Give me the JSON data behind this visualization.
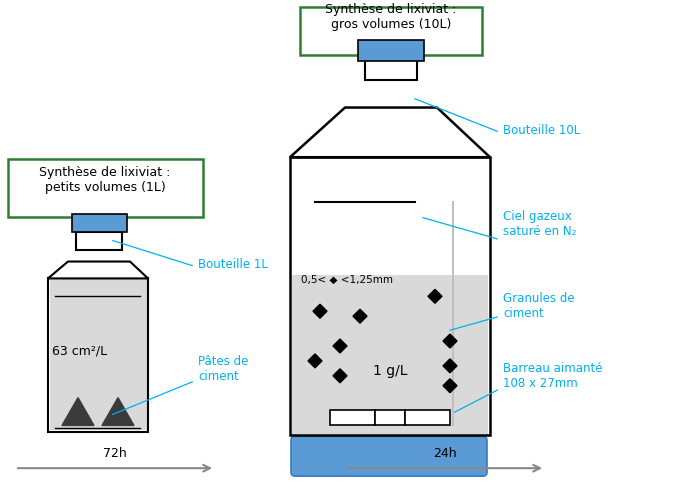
{
  "bg_color": "#ffffff",
  "border_color": "#2e7d32",
  "blue_cap": "#5b9bd5",
  "gray_fill": "#d9d9d9",
  "black": "#000000",
  "dark_gray": "#3a3a3a",
  "cyan_label": "#00b0f0",
  "arrow_color": "#888888",
  "box1_text": "Synthèse de lixiviat :\npetits volumes (1L)",
  "box2_text": "Synthèse de lixiviat :\ngros volumes (10L)",
  "label_bouteille1L": "Bouteille 1L",
  "label_bouteille10L": "Bouteille 10L",
  "label_ciel": "Ciel gazeux\nsaturé en N₂",
  "label_granules": "Granules de\nciment",
  "label_barreau": "Barreau aimanté\n108 x 27mm",
  "label_pates": "Pâtes de\nciment",
  "label_63": "63 cm²/L",
  "label_1gL": "1 g/L",
  "label_size": "0,5< ◆ <1,25mm",
  "label_72h": "72h",
  "label_24h": "24h"
}
